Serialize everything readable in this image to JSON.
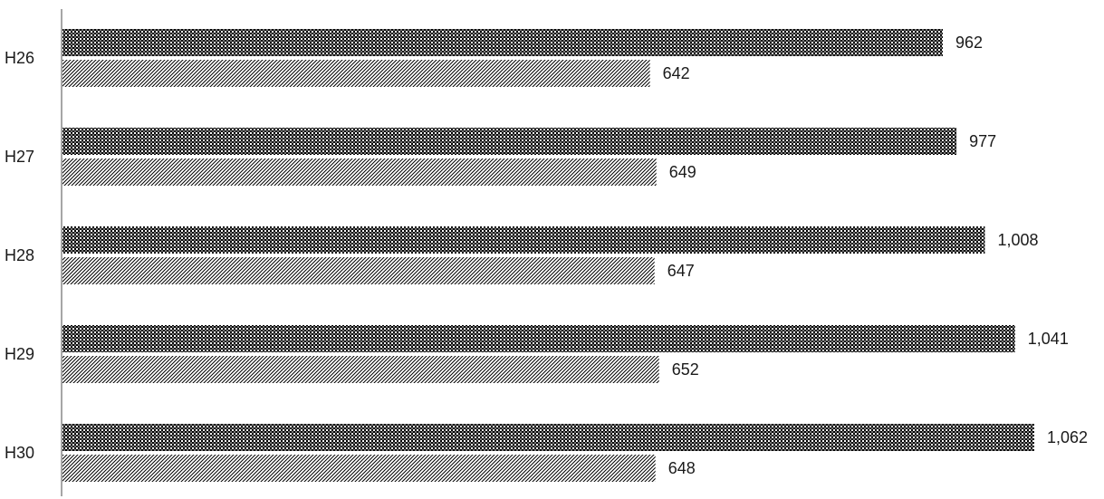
{
  "chart_data": {
    "type": "bar",
    "orientation": "horizontal",
    "categories": [
      "H26",
      "H27",
      "H28",
      "H29",
      "H30"
    ],
    "series": [
      {
        "values": [
          962,
          977,
          1008,
          1041,
          1062
        ],
        "value_labels": [
          "962",
          "977",
          "1,008",
          "1,041",
          "1,062"
        ],
        "pattern": "dense-checker",
        "color": "#000000"
      },
      {
        "values": [
          642,
          649,
          647,
          652,
          648
        ],
        "value_labels": [
          "642",
          "649",
          "647",
          "652",
          "648"
        ],
        "pattern": "diagonal-hatch",
        "color": "#000000"
      }
    ],
    "title": "",
    "xlabel": "",
    "ylabel": "",
    "xlim": [
      0,
      1100
    ],
    "grid": false,
    "legend": "none"
  }
}
